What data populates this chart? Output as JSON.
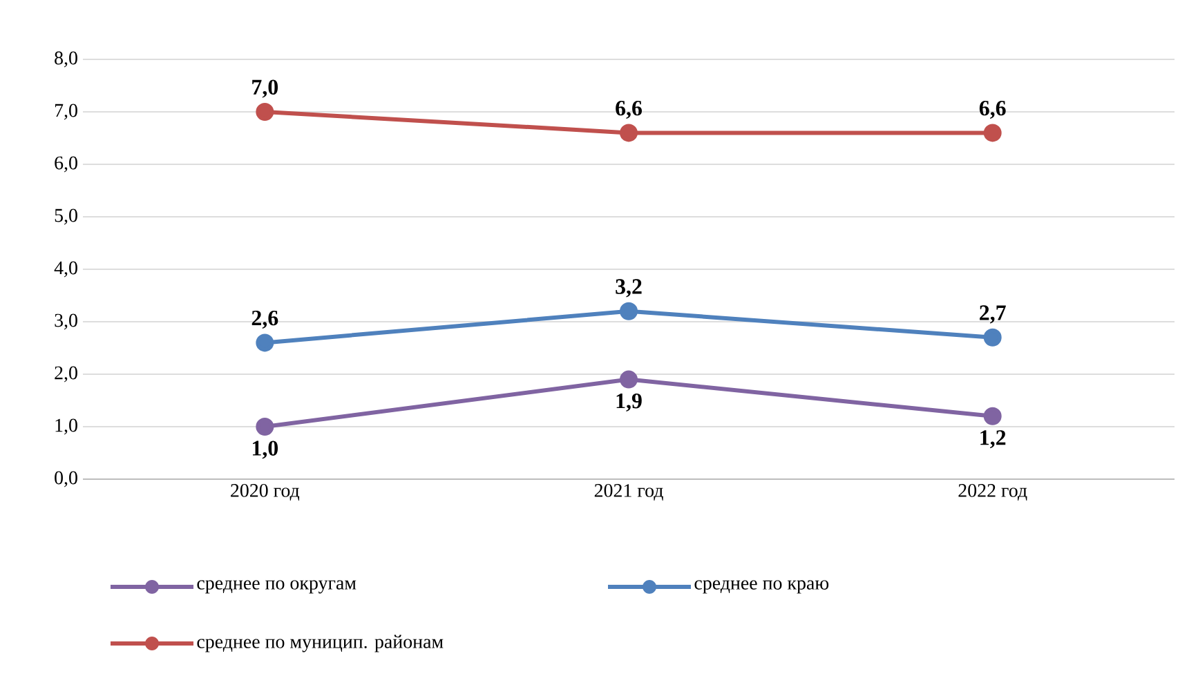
{
  "chart_data": {
    "type": "line",
    "categories": [
      "2020 год",
      "2021 год",
      "2022 год"
    ],
    "series": [
      {
        "name": "среднее по округам",
        "color": "#8064a2",
        "values": [
          1.0,
          1.9,
          1.2
        ],
        "value_labels": [
          "1,0",
          "1,9",
          "1,2"
        ]
      },
      {
        "name": "среднее по краю",
        "color": "#4f81bd",
        "values": [
          2.6,
          3.2,
          2.7
        ],
        "value_labels": [
          "2,6",
          "3,2",
          "2,7"
        ]
      },
      {
        "name": "среднее по муницип. районам",
        "color": "#c0504d",
        "values": [
          7.0,
          6.6,
          6.6
        ],
        "value_labels": [
          "7,0",
          "6,6",
          "6,6"
        ]
      }
    ],
    "ylim": [
      0,
      8
    ],
    "yticks": [
      {
        "value": 0,
        "label": "0,0"
      },
      {
        "value": 1,
        "label": "1,0"
      },
      {
        "value": 2,
        "label": "2,0"
      },
      {
        "value": 3,
        "label": "3,0"
      },
      {
        "value": 4,
        "label": "4,0"
      },
      {
        "value": 5,
        "label": "5,0"
      },
      {
        "value": 6,
        "label": "6,0"
      },
      {
        "value": 7,
        "label": "7,0"
      },
      {
        "value": 8,
        "label": "8,0"
      }
    ],
    "grid": "y",
    "legend": "bottom",
    "marker": "circle",
    "line_style": "solid"
  }
}
